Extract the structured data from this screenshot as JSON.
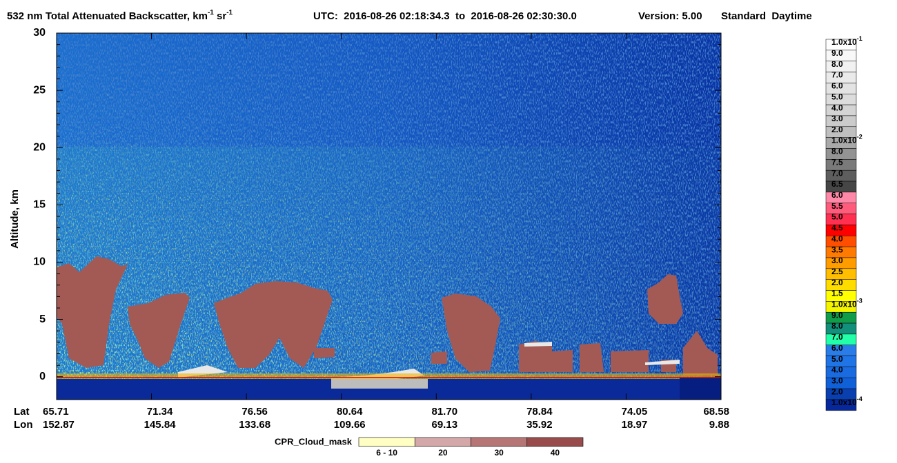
{
  "title": {
    "text": "532 nm Total Attenuated Backscatter, km",
    "exp1": "-1",
    "unit2": " sr",
    "exp2": "-1",
    "time": "UTC:  2016-08-26 02:18:34.3  to  2016-08-26 02:30:30.0",
    "version": "Version: 5.00",
    "mode": "Standard  Daytime"
  },
  "y_axis": {
    "label": "Altitude, km",
    "range": [
      -2,
      30
    ],
    "ticks": [
      0,
      5,
      10,
      15,
      20,
      25,
      30
    ]
  },
  "x_axis": {
    "lat_label": "Lat",
    "lon_label": "Lon",
    "lat": [
      "65.71",
      "71.34",
      "76.56",
      "80.64",
      "81.70",
      "78.84",
      "74.05",
      "68.58"
    ],
    "lon": [
      "152.87",
      "145.84",
      "133.68",
      "109.66",
      "69.13",
      "35.92",
      "18.97",
      "9.88"
    ]
  },
  "colorbar": {
    "labels": [
      {
        "base": "1.0x10",
        "exp": "-1"
      },
      "9.0",
      "8.0",
      "7.0",
      "6.0",
      "5.0",
      "4.0",
      "3.0",
      "2.0",
      {
        "base": "1.0x10",
        "exp": "-2"
      },
      "8.0",
      "7.5",
      "7.0",
      "6.5",
      "6.0",
      "5.5",
      "5.0",
      "4.5",
      "4.0",
      "3.5",
      "3.0",
      "2.5",
      "2.0",
      "1.5",
      {
        "base": "1.0x10",
        "exp": "-3"
      },
      "9.0",
      "8.0",
      "7.0",
      "6.0",
      "5.0",
      "4.0",
      "3.0",
      "2.0",
      {
        "base": "1.0x10",
        "exp": "-4"
      }
    ],
    "colors": [
      "#ffffff",
      "#f8f8f8",
      "#f1f1f1",
      "#eaeaea",
      "#e3e3e3",
      "#dcdcdc",
      "#d4d4d4",
      "#cbcbcb",
      "#bfbfbf",
      "#a9a9a9",
      "#939393",
      "#7a7a7a",
      "#5e5e5e",
      "#464646",
      "#ff88a8",
      "#ff5c7c",
      "#ff3050",
      "#ff0000",
      "#ff4e00",
      "#ff7a00",
      "#ff9c00",
      "#ffbe00",
      "#ffdc00",
      "#ffff00",
      "#f4f400",
      "#109c48",
      "#12907c",
      "#22ffa8",
      "#2a7de8",
      "#1f74e6",
      "#1a6be0",
      "#1060d8",
      "#0a3fb0",
      "#06289a"
    ]
  },
  "cloud_mask": {
    "label": "CPR_Cloud_mask",
    "items": [
      {
        "label": "6 - 10",
        "color": "#ffffc4"
      },
      {
        "label": "20",
        "color": "#d4a8a8"
      },
      {
        "label": "30",
        "color": "#b67676"
      },
      {
        "label": "40",
        "color": "#984c4c"
      }
    ]
  }
}
